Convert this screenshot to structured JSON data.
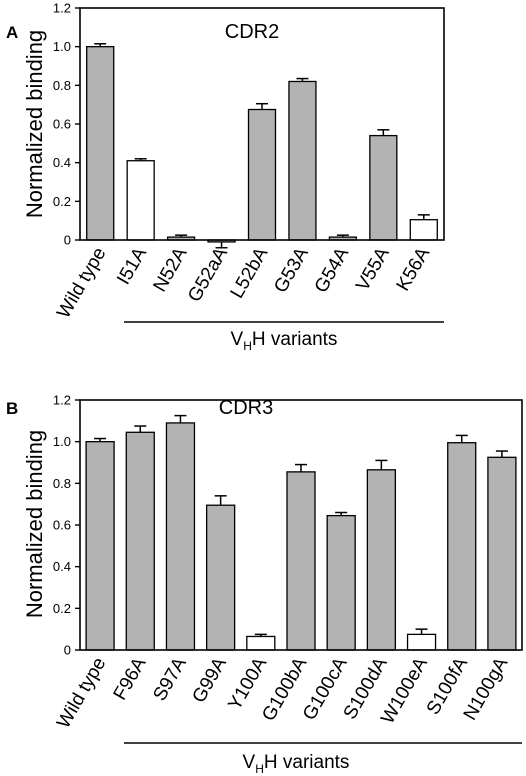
{
  "chart_data": [
    {
      "panel": "A",
      "type": "bar",
      "title": "CDR2",
      "ylabel": "Normalized binding",
      "xlabel": {
        "main_prefix": "V",
        "subscript": "H",
        "main_suffix": "H variants"
      },
      "ylim": [
        0,
        1.2
      ],
      "yticks": [
        "0",
        "0.2",
        "0.4",
        "0.6",
        "0.8",
        "1.0",
        "1.2"
      ],
      "grid": false,
      "legend": "none",
      "categories": [
        "Wild type",
        "I51A",
        "N52A",
        "G52aA",
        "L52bA",
        "G53A",
        "G54A",
        "V55A",
        "K56A"
      ],
      "values": [
        1.0,
        0.41,
        0.015,
        -0.01,
        0.675,
        0.82,
        0.015,
        0.54,
        0.105
      ],
      "errors": [
        0.015,
        0.01,
        0.01,
        0.03,
        0.03,
        0.015,
        0.01,
        0.03,
        0.025
      ],
      "fills": [
        "gray",
        "white",
        "gray",
        "gray",
        "gray",
        "gray",
        "gray",
        "gray",
        "white"
      ]
    },
    {
      "panel": "B",
      "type": "bar",
      "title": "CDR3",
      "ylabel": "Normalized binding",
      "xlabel": {
        "main_prefix": "V",
        "subscript": "H",
        "main_suffix": "H variants"
      },
      "ylim": [
        0,
        1.2
      ],
      "yticks": [
        "0",
        "0.2",
        "0.4",
        "0.6",
        "0.8",
        "1.0",
        "1.2"
      ],
      "grid": false,
      "legend": "none",
      "categories": [
        "Wild type",
        "F96A",
        "S97A",
        "G99A",
        "Y100A",
        "G100bA",
        "G100cA",
        "S100dA",
        "W100eA",
        "S100fA",
        "N100gA"
      ],
      "values": [
        1.0,
        1.045,
        1.09,
        0.695,
        0.065,
        0.855,
        0.645,
        0.865,
        0.075,
        0.995,
        0.925
      ],
      "errors": [
        0.015,
        0.03,
        0.035,
        0.045,
        0.01,
        0.035,
        0.015,
        0.045,
        0.025,
        0.035,
        0.03
      ],
      "fills": [
        "gray",
        "gray",
        "gray",
        "gray",
        "white",
        "gray",
        "gray",
        "gray",
        "white",
        "gray",
        "gray"
      ]
    }
  ],
  "colors": {
    "gray": "#b3b3b3",
    "white": "#ffffff",
    "stroke": "#000000"
  }
}
